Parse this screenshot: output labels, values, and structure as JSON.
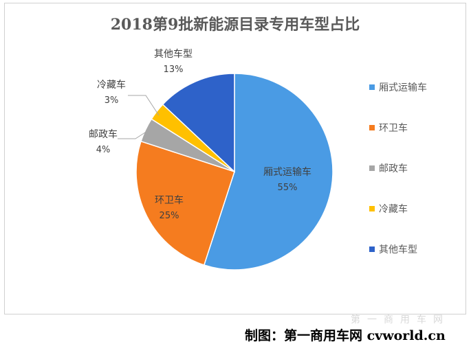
{
  "chart_data": {
    "type": "pie",
    "title": "2018第9批新能源目录专用车型占比",
    "categories": [
      "厢式运输车",
      "环卫车",
      "邮政车",
      "冷藏车",
      "其他车型"
    ],
    "values": [
      55,
      25,
      4,
      3,
      13
    ],
    "value_labels": [
      "55%",
      "25%",
      "4%",
      "3%",
      "13%"
    ],
    "colors": [
      "#4A9BE4",
      "#F57C1F",
      "#A6A6A6",
      "#FFC000",
      "#2E62C9"
    ],
    "legend_position": "right",
    "start_angle": "12 o'clock, clockwise"
  },
  "credit": "制图：第一商用车网 cvworld.cn",
  "watermark": "第一商用车网"
}
